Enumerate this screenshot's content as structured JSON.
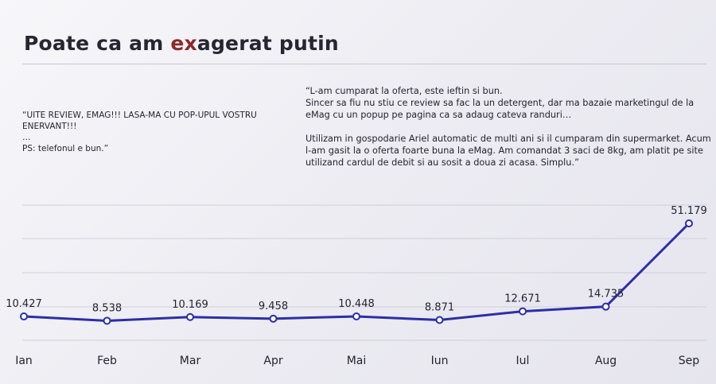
{
  "slide": {
    "title_before": "Poate ca am ",
    "title_accent": "ex",
    "title_after": "agerat putin",
    "accent_color": "#8a2a2a",
    "line_color": "#2c2fa6"
  },
  "quotes": {
    "left": "“UITE REVIEW, EMAG!!! LASA-MA CU POP-UPUL VOSTRU ENERVANT!!!\n…\nPS: telefonul e bun.”",
    "right": "“L-am cumparat la oferta, este ieftin si bun.\nSincer sa fiu nu stiu ce review sa fac la un detergent, dar ma bazaie marketingul de la eMag cu un popup pe pagina ca sa adaug cateva randuri…\n\nUtilizam in gospodarie Ariel automatic de multi ani si il cumparam din supermarket. Acum l-am gasit la o oferta foarte buna la eMag. Am comandat 3 saci de 8kg, am platit pe site utilizand cardul de debit si au sosit a doua zi acasa. Simplu.”"
  },
  "chart_data": {
    "type": "line",
    "categories": [
      "Ian",
      "Feb",
      "Mar",
      "Apr",
      "Mai",
      "Iun",
      "Iul",
      "Aug",
      "Sep"
    ],
    "values": [
      10427,
      8538,
      10169,
      9458,
      10448,
      8871,
      12671,
      14735,
      51179
    ],
    "value_labels": [
      "10.427",
      "8.538",
      "10.169",
      "9.458",
      "10.448",
      "8.871",
      "12.671",
      "14.735",
      "51.179"
    ],
    "title": "",
    "xlabel": "",
    "ylabel": "",
    "grid": true,
    "legend": "none"
  }
}
